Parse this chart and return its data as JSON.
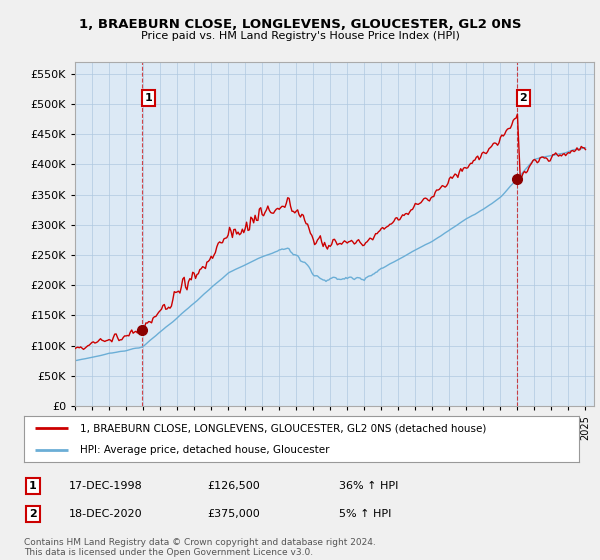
{
  "title1": "1, BRAEBURN CLOSE, LONGLEVENS, GLOUCESTER, GL2 0NS",
  "title2": "Price paid vs. HM Land Registry's House Price Index (HPI)",
  "legend_line1": "1, BRAEBURN CLOSE, LONGLEVENS, GLOUCESTER, GL2 0NS (detached house)",
  "legend_line2": "HPI: Average price, detached house, Gloucester",
  "table_rows": [
    {
      "num": "1",
      "date": "17-DEC-1998",
      "price": "£126,500",
      "change": "36% ↑ HPI"
    },
    {
      "num": "2",
      "date": "18-DEC-2020",
      "price": "£375,000",
      "change": "5% ↑ HPI"
    }
  ],
  "footnote": "Contains HM Land Registry data © Crown copyright and database right 2024.\nThis data is licensed under the Open Government Licence v3.0.",
  "sale1_date": 1998.96,
  "sale1_price": 126500,
  "sale2_date": 2020.96,
  "sale2_price": 375000,
  "hpi_color": "#6baed6",
  "price_color": "#cc0000",
  "marker_color": "#8b0000",
  "ylim": [
    0,
    570000
  ],
  "yticks": [
    0,
    50000,
    100000,
    150000,
    200000,
    250000,
    300000,
    350000,
    400000,
    450000,
    500000,
    550000
  ],
  "background_color": "#f0f0f0",
  "plot_bg_color": "#dce9f5",
  "grid_color": "#b0c8e0"
}
